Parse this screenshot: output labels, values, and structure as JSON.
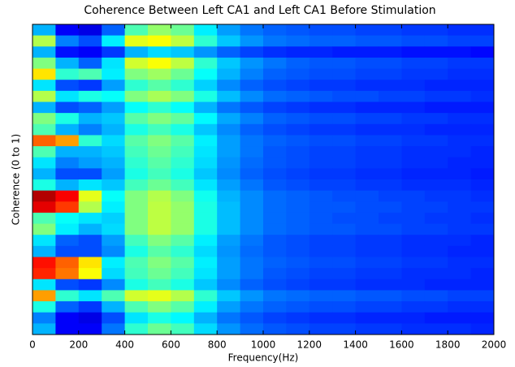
{
  "chart_data": {
    "type": "heatmap",
    "title": "Coherence Between Left CA1 and Left CA1 Before Stimulation",
    "x_label": "Frequency(Hz)",
    "y_label": "Coherence (0 to 1)",
    "colormap": "jet",
    "zlim": [
      0,
      1
    ],
    "xlim": [
      0,
      2000
    ],
    "xticks": [
      0,
      200,
      400,
      600,
      800,
      1000,
      1200,
      1400,
      1600,
      1800,
      2000
    ],
    "x": [
      50,
      150,
      250,
      350,
      450,
      550,
      650,
      750,
      850,
      950,
      1050,
      1150,
      1250,
      1350,
      1450,
      1550,
      1650,
      1750,
      1850,
      1950
    ],
    "z": [
      [
        0.3,
        0.12,
        0.1,
        0.22,
        0.45,
        0.52,
        0.48,
        0.36,
        0.28,
        0.24,
        0.22,
        0.21,
        0.2,
        0.2,
        0.19,
        0.19,
        0.18,
        0.18,
        0.17,
        0.17
      ],
      [
        0.55,
        0.25,
        0.2,
        0.36,
        0.6,
        0.62,
        0.56,
        0.42,
        0.32,
        0.27,
        0.24,
        0.23,
        0.22,
        0.22,
        0.21,
        0.21,
        0.2,
        0.2,
        0.19,
        0.19
      ],
      [
        0.3,
        0.14,
        0.12,
        0.18,
        0.3,
        0.34,
        0.32,
        0.27,
        0.22,
        0.19,
        0.17,
        0.16,
        0.16,
        0.15,
        0.15,
        0.15,
        0.14,
        0.14,
        0.14,
        0.13
      ],
      [
        0.5,
        0.3,
        0.22,
        0.35,
        0.58,
        0.62,
        0.56,
        0.42,
        0.32,
        0.27,
        0.24,
        0.22,
        0.21,
        0.21,
        0.2,
        0.2,
        0.19,
        0.19,
        0.18,
        0.18
      ],
      [
        0.65,
        0.42,
        0.45,
        0.36,
        0.5,
        0.53,
        0.48,
        0.38,
        0.3,
        0.25,
        0.22,
        0.21,
        0.2,
        0.2,
        0.19,
        0.19,
        0.18,
        0.18,
        0.17,
        0.17
      ],
      [
        0.35,
        0.2,
        0.18,
        0.28,
        0.42,
        0.46,
        0.42,
        0.33,
        0.26,
        0.22,
        0.2,
        0.19,
        0.18,
        0.18,
        0.17,
        0.17,
        0.17,
        0.16,
        0.16,
        0.16
      ],
      [
        0.55,
        0.35,
        0.4,
        0.38,
        0.5,
        0.54,
        0.5,
        0.4,
        0.31,
        0.26,
        0.23,
        0.22,
        0.21,
        0.2,
        0.2,
        0.19,
        0.19,
        0.18,
        0.18,
        0.17
      ],
      [
        0.3,
        0.2,
        0.22,
        0.28,
        0.38,
        0.42,
        0.38,
        0.3,
        0.24,
        0.21,
        0.19,
        0.18,
        0.17,
        0.17,
        0.16,
        0.16,
        0.16,
        0.15,
        0.15,
        0.15
      ],
      [
        0.5,
        0.4,
        0.3,
        0.32,
        0.46,
        0.5,
        0.47,
        0.37,
        0.29,
        0.25,
        0.22,
        0.21,
        0.2,
        0.2,
        0.19,
        0.19,
        0.18,
        0.18,
        0.17,
        0.17
      ],
      [
        0.45,
        0.3,
        0.25,
        0.3,
        0.4,
        0.44,
        0.4,
        0.32,
        0.26,
        0.22,
        0.2,
        0.19,
        0.18,
        0.18,
        0.17,
        0.17,
        0.17,
        0.16,
        0.16,
        0.16
      ],
      [
        0.78,
        0.72,
        0.42,
        0.34,
        0.46,
        0.5,
        0.46,
        0.36,
        0.28,
        0.24,
        0.22,
        0.21,
        0.2,
        0.2,
        0.19,
        0.19,
        0.18,
        0.18,
        0.17,
        0.17
      ],
      [
        0.45,
        0.3,
        0.3,
        0.32,
        0.44,
        0.48,
        0.44,
        0.35,
        0.28,
        0.24,
        0.21,
        0.2,
        0.19,
        0.19,
        0.18,
        0.18,
        0.17,
        0.17,
        0.17,
        0.16
      ],
      [
        0.35,
        0.25,
        0.28,
        0.3,
        0.42,
        0.46,
        0.42,
        0.34,
        0.27,
        0.23,
        0.21,
        0.2,
        0.19,
        0.19,
        0.18,
        0.18,
        0.17,
        0.17,
        0.16,
        0.16
      ],
      [
        0.3,
        0.2,
        0.2,
        0.28,
        0.4,
        0.44,
        0.4,
        0.32,
        0.26,
        0.22,
        0.2,
        0.19,
        0.18,
        0.18,
        0.17,
        0.17,
        0.16,
        0.16,
        0.16,
        0.15
      ],
      [
        0.4,
        0.3,
        0.35,
        0.32,
        0.44,
        0.48,
        0.44,
        0.35,
        0.28,
        0.24,
        0.21,
        0.2,
        0.19,
        0.19,
        0.18,
        0.18,
        0.17,
        0.17,
        0.17,
        0.16
      ],
      [
        0.95,
        0.88,
        0.6,
        0.38,
        0.5,
        0.55,
        0.5,
        0.39,
        0.3,
        0.26,
        0.23,
        0.22,
        0.21,
        0.2,
        0.2,
        0.19,
        0.19,
        0.18,
        0.18,
        0.17
      ],
      [
        0.9,
        0.82,
        0.55,
        0.36,
        0.5,
        0.56,
        0.52,
        0.4,
        0.31,
        0.26,
        0.23,
        0.22,
        0.21,
        0.21,
        0.2,
        0.2,
        0.19,
        0.19,
        0.18,
        0.18
      ],
      [
        0.45,
        0.38,
        0.35,
        0.33,
        0.5,
        0.56,
        0.52,
        0.4,
        0.31,
        0.26,
        0.23,
        0.22,
        0.21,
        0.2,
        0.2,
        0.19,
        0.19,
        0.18,
        0.18,
        0.17
      ],
      [
        0.5,
        0.36,
        0.3,
        0.34,
        0.5,
        0.56,
        0.52,
        0.4,
        0.31,
        0.26,
        0.23,
        0.22,
        0.21,
        0.21,
        0.2,
        0.2,
        0.19,
        0.19,
        0.18,
        0.18
      ],
      [
        0.35,
        0.22,
        0.2,
        0.28,
        0.44,
        0.5,
        0.46,
        0.36,
        0.28,
        0.24,
        0.21,
        0.2,
        0.19,
        0.19,
        0.18,
        0.18,
        0.17,
        0.17,
        0.17,
        0.16
      ],
      [
        0.3,
        0.2,
        0.2,
        0.26,
        0.4,
        0.46,
        0.42,
        0.34,
        0.27,
        0.23,
        0.21,
        0.2,
        0.19,
        0.19,
        0.18,
        0.18,
        0.17,
        0.17,
        0.16,
        0.16
      ],
      [
        0.86,
        0.78,
        0.65,
        0.36,
        0.45,
        0.5,
        0.46,
        0.36,
        0.28,
        0.24,
        0.22,
        0.21,
        0.2,
        0.2,
        0.19,
        0.19,
        0.18,
        0.18,
        0.17,
        0.17
      ],
      [
        0.84,
        0.76,
        0.62,
        0.34,
        0.44,
        0.48,
        0.44,
        0.35,
        0.28,
        0.24,
        0.21,
        0.2,
        0.19,
        0.19,
        0.18,
        0.18,
        0.17,
        0.17,
        0.17,
        0.16
      ],
      [
        0.35,
        0.2,
        0.18,
        0.26,
        0.4,
        0.44,
        0.4,
        0.32,
        0.26,
        0.22,
        0.2,
        0.19,
        0.18,
        0.18,
        0.17,
        0.17,
        0.17,
        0.16,
        0.16,
        0.16
      ],
      [
        0.72,
        0.42,
        0.35,
        0.45,
        0.58,
        0.6,
        0.55,
        0.42,
        0.32,
        0.27,
        0.24,
        0.23,
        0.22,
        0.22,
        0.21,
        0.21,
        0.2,
        0.2,
        0.19,
        0.19
      ],
      [
        0.4,
        0.22,
        0.18,
        0.3,
        0.45,
        0.5,
        0.46,
        0.36,
        0.28,
        0.24,
        0.22,
        0.21,
        0.2,
        0.2,
        0.19,
        0.19,
        0.18,
        0.18,
        0.17,
        0.17
      ],
      [
        0.25,
        0.12,
        0.1,
        0.2,
        0.35,
        0.4,
        0.37,
        0.3,
        0.24,
        0.21,
        0.19,
        0.18,
        0.17,
        0.17,
        0.16,
        0.16,
        0.16,
        0.15,
        0.15,
        0.15
      ],
      [
        0.3,
        0.12,
        0.12,
        0.24,
        0.42,
        0.48,
        0.44,
        0.34,
        0.27,
        0.23,
        0.21,
        0.2,
        0.19,
        0.19,
        0.18,
        0.18,
        0.17,
        0.17,
        0.17,
        0.16
      ]
    ]
  }
}
